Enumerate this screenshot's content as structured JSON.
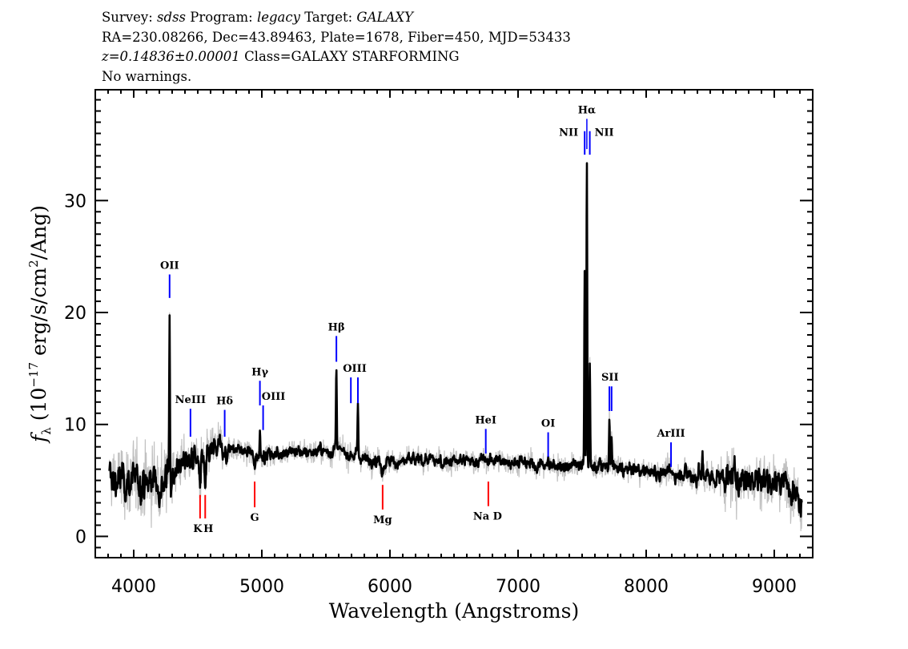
{
  "header": {
    "survey_label": "Survey:",
    "survey": "sdss",
    "program_label": "Program:",
    "program": "legacy",
    "target_label": "Target:",
    "target": "GALAXY",
    "line2": "RA=230.08266, Dec=43.89463, Plate=1678, Fiber=450, MJD=53433",
    "redshift": "z=0.14836±0.00001",
    "class": "Class=GALAXY STARFORMING",
    "warnings": "No warnings."
  },
  "chart_data": {
    "type": "line",
    "title": "",
    "xlabel": "Wavelength (Angstroms)",
    "ylabel_parts": {
      "symbol": "f",
      "sub": "λ",
      "pre": "(10",
      "exp1": "−17",
      "mid": " erg/s/cm",
      "exp2": "2",
      "post": "/Ang)"
    },
    "xlim": [
      3700,
      9300
    ],
    "ylim": [
      -1.9,
      39.9
    ],
    "x_ticks": [
      4000,
      5000,
      6000,
      7000,
      8000,
      9000
    ],
    "x_tick_labels": [
      "4000",
      "5000",
      "6000",
      "7000",
      "8000",
      "9000"
    ],
    "y_ticks": [
      0,
      10,
      20,
      30
    ],
    "y_tick_labels": [
      "0",
      "10",
      "20",
      "30"
    ],
    "grid": false,
    "legend": "none",
    "colors": {
      "flux": "#000000",
      "error": "#c0c0c0",
      "emission_marker": "#0000ff",
      "absorption_marker": "#ff0000"
    },
    "wavelength_range": [
      3810,
      9215
    ],
    "continuum": {
      "wavelength": [
        3810,
        3900,
        4000,
        4100,
        4200,
        4280,
        4350,
        4450,
        4550,
        4600,
        4700,
        4800,
        5000,
        5200,
        5400,
        5600,
        5800,
        6000,
        6200,
        6500,
        6800,
        7000,
        7200,
        7400,
        7700,
        8000,
        8200,
        8500,
        8800,
        9000,
        9150,
        9210
      ],
      "flux": [
        5.2,
        5.0,
        4.8,
        4.9,
        5.0,
        5.4,
        6.3,
        7.0,
        6.7,
        7.6,
        8.0,
        7.8,
        7.2,
        7.6,
        7.6,
        7.6,
        7.0,
        6.6,
        6.8,
        6.7,
        6.8,
        6.6,
        6.3,
        6.3,
        6.2,
        5.8,
        5.6,
        5.3,
        5.2,
        5.0,
        4.6,
        3.0
      ]
    },
    "emission_peaks": [
      {
        "wavelength": 4280,
        "flux": 19.3
      },
      {
        "wavelength": 4985,
        "flux": 9.4
      },
      {
        "wavelength": 5582,
        "flux": 15.2
      },
      {
        "wavelength": 5695,
        "flux": 7.8
      },
      {
        "wavelength": 5750,
        "flux": 11.7
      },
      {
        "wavelength": 7520,
        "flux": 23.8
      },
      {
        "wavelength": 7537,
        "flux": 33.7
      },
      {
        "wavelength": 7560,
        "flux": 15.0
      },
      {
        "wavelength": 7713,
        "flux": 10.7
      },
      {
        "wavelength": 7730,
        "flux": 8.8
      },
      {
        "wavelength": 7236,
        "flux": 7.0
      },
      {
        "wavelength": 8440,
        "flux": 7.5
      }
    ],
    "line_markers": [
      {
        "label": "OII",
        "wavelength": 4280,
        "kind": "emission",
        "flux_range": [
          21.3,
          23.4
        ]
      },
      {
        "label": "NeIII",
        "wavelength": 4443,
        "kind": "emission",
        "flux_range": [
          8.9,
          11.4
        ]
      },
      {
        "label": "Hδ",
        "wavelength": 4710,
        "kind": "emission",
        "flux_range": [
          8.9,
          11.3
        ]
      },
      {
        "label": "Hγ",
        "wavelength": 4985,
        "kind": "emission",
        "flux_range": [
          11.7,
          13.9
        ]
      },
      {
        "label": "OIII",
        "wavelength": 5010,
        "kind": "emission",
        "flux_range": [
          9.5,
          11.7
        ]
      },
      {
        "label": "Hβ",
        "wavelength": 5582,
        "kind": "emission",
        "flux_range": [
          15.6,
          17.9
        ]
      },
      {
        "label": "OIII",
        "wavelength": 5695,
        "kind": "emission",
        "flux_range": [
          11.9,
          14.2
        ],
        "label_hidden": true
      },
      {
        "label": "OIII",
        "wavelength": 5750,
        "kind": "emission",
        "flux_range": [
          11.9,
          14.2
        ]
      },
      {
        "label": "HeI",
        "wavelength": 6748,
        "kind": "emission",
        "flux_range": [
          7.4,
          9.6
        ]
      },
      {
        "label": "OI",
        "wavelength": 7235,
        "kind": "emission",
        "flux_range": [
          7.1,
          9.3
        ]
      },
      {
        "label": "NII",
        "wavelength": 7520,
        "kind": "emission",
        "flux_range": [
          34.1,
          36.2
        ],
        "label_side": "left"
      },
      {
        "label": "Hα",
        "wavelength": 7537,
        "kind": "emission",
        "flux_range": [
          34.6,
          37.3
        ]
      },
      {
        "label": "NII",
        "wavelength": 7560,
        "kind": "emission",
        "flux_range": [
          34.1,
          36.2
        ],
        "label_side": "right"
      },
      {
        "label": "SII",
        "wavelength": 7713,
        "kind": "emission",
        "flux_range": [
          11.2,
          13.4
        ],
        "label_hidden": true
      },
      {
        "label": "SII",
        "wavelength": 7730,
        "kind": "emission",
        "flux_range": [
          11.2,
          13.4
        ]
      },
      {
        "label": "ArIII",
        "wavelength": 8194,
        "kind": "emission",
        "flux_range": [
          6.2,
          8.4
        ]
      },
      {
        "label": "K",
        "wavelength": 4518,
        "kind": "absorption",
        "flux_range": [
          1.6,
          3.7
        ]
      },
      {
        "label": "H",
        "wavelength": 4558,
        "kind": "absorption",
        "flux_range": [
          1.6,
          3.7
        ]
      },
      {
        "label": "G",
        "wavelength": 4944,
        "kind": "absorption",
        "flux_range": [
          2.6,
          4.9
        ]
      },
      {
        "label": "Mg",
        "wavelength": 5943,
        "kind": "absorption",
        "flux_range": [
          2.4,
          4.6
        ]
      },
      {
        "label": "Na D",
        "wavelength": 6768,
        "kind": "absorption",
        "flux_range": [
          2.7,
          4.9
        ]
      }
    ]
  }
}
